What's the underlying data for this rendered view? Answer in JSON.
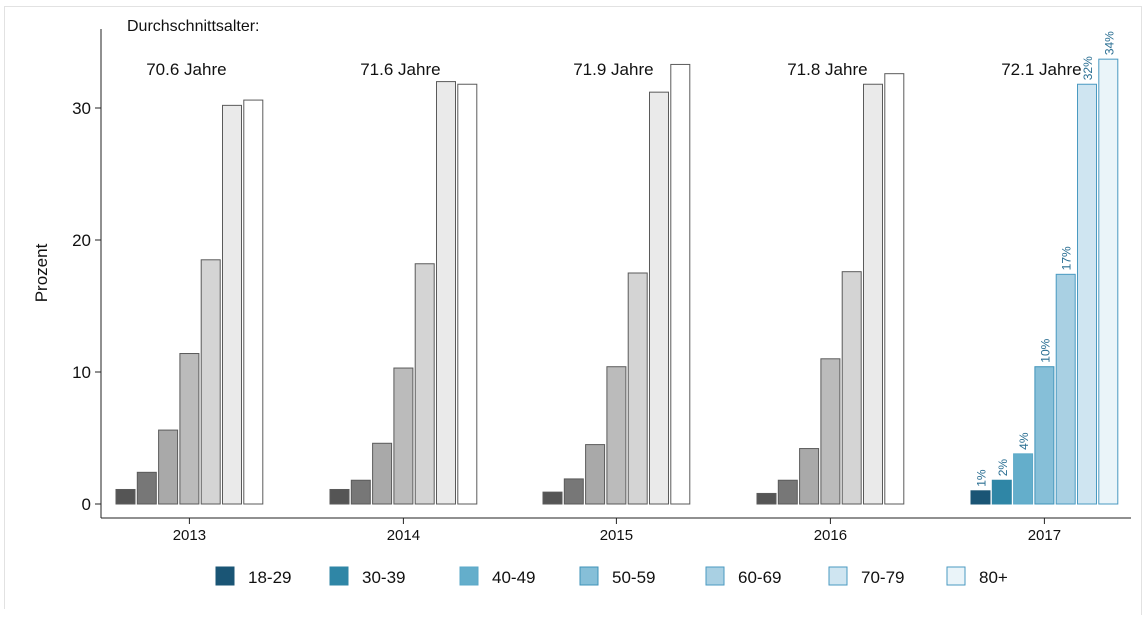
{
  "chart_data": {
    "type": "bar",
    "ylabel": "Prozent",
    "ylim": [
      0,
      35
    ],
    "yticks": [
      0,
      10,
      20,
      30
    ],
    "annotation_title": "Durchschnittsalter:",
    "categories": [
      "2013",
      "2014",
      "2015",
      "2016",
      "2017"
    ],
    "avg_age_labels": [
      "70.6 Jahre",
      "71.6 Jahre",
      "71.9 Jahre",
      "71.8 Jahre",
      "72.1 Jahre"
    ],
    "series": [
      {
        "name": "18-29",
        "values": [
          1.1,
          1.1,
          0.9,
          0.8,
          1.0
        ]
      },
      {
        "name": "30-39",
        "values": [
          2.4,
          1.8,
          1.9,
          1.8,
          1.8
        ]
      },
      {
        "name": "40-49",
        "values": [
          5.6,
          4.6,
          4.5,
          4.2,
          3.8
        ]
      },
      {
        "name": "50-59",
        "values": [
          11.4,
          10.3,
          10.4,
          11.0,
          10.4
        ]
      },
      {
        "name": "60-69",
        "values": [
          18.5,
          18.2,
          17.5,
          17.6,
          17.4
        ]
      },
      {
        "name": "70-79",
        "values": [
          30.2,
          32.0,
          31.2,
          31.8,
          31.8
        ]
      },
      {
        "name": "80+",
        "values": [
          30.6,
          31.8,
          33.3,
          32.6,
          33.7
        ]
      }
    ],
    "highlight_labels_2017": [
      "1%",
      "2%",
      "4%",
      "10%",
      "17%",
      "32%",
      "34%"
    ],
    "colors": {
      "gray_fills": [
        "#555555",
        "#777777",
        "#a9a9a9",
        "#bbbbbb",
        "#d4d4d4",
        "#eaeaea",
        "#ffffff"
      ],
      "blue_fills": [
        "#1a5575",
        "#2f86a6",
        "#64aecb",
        "#86bfd8",
        "#a9d0e3",
        "#cfe5f1",
        "#eaf4f9"
      ],
      "blue_strokes": [
        "#1a5575",
        "#2f86a6",
        "#5aa8c8",
        "#3f93b9",
        "#4a9ac1",
        "#4a9ac1",
        "#4a9ac1"
      ],
      "label_color": "#2b6f93",
      "axis_color": "#222222"
    },
    "grid": false,
    "legend_position": "bottom"
  }
}
